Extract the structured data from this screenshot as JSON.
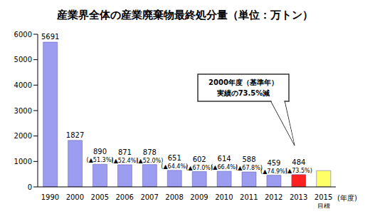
{
  "chart_data": {
    "type": "bar",
    "title": "産業界全体の産業廃棄物最終処分量（単位：万トン）",
    "categories": [
      "1990",
      "2000",
      "2005",
      "2006",
      "2007",
      "2008",
      "2009",
      "2010",
      "2011",
      "2012",
      "2013",
      "2015"
    ],
    "x_sublabels": [
      null,
      null,
      null,
      null,
      null,
      null,
      null,
      null,
      null,
      null,
      null,
      "目標"
    ],
    "xlabel": "(年度)",
    "values": [
      5691,
      1827,
      890,
      871,
      878,
      651,
      602,
      614,
      588,
      459,
      484,
      640
    ],
    "value_labels": [
      "5691",
      "1827",
      "890",
      "871",
      "878",
      "651",
      "602",
      "614",
      "588",
      "459",
      "484",
      null
    ],
    "change_labels": [
      null,
      null,
      "(▲51.3%)",
      "(▲52.4%)",
      "(▲52.0%)",
      "(▲64.4%)",
      "(▲67.0%)",
      "(▲66.4%)",
      "(▲67.8%)",
      "(▲74.9%)",
      "(▲73.5%)",
      null
    ],
    "colors": [
      "#9c9cf0",
      "#9c9cf0",
      "#9c9cf0",
      "#9c9cf0",
      "#9c9cf0",
      "#9c9cf0",
      "#9c9cf0",
      "#9c9cf0",
      "#9c9cf0",
      "#9c9cf0",
      "#ff2020",
      "#ffff66"
    ],
    "annotation": [
      "2000年度（基準年）",
      "実績の73.5%減"
    ],
    "ylim": [
      0,
      6000
    ],
    "yticks": [
      0,
      1000,
      2000,
      3000,
      4000,
      5000,
      6000
    ],
    "grid": false
  }
}
